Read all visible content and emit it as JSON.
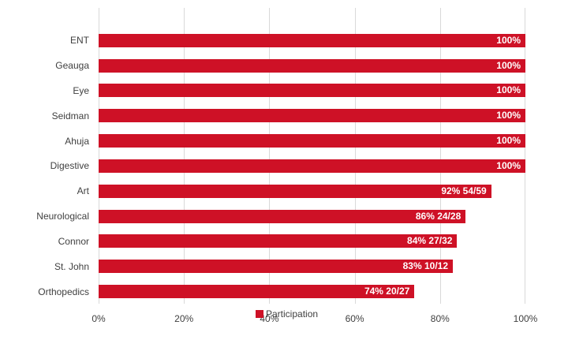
{
  "chart_data": {
    "type": "bar",
    "orientation": "horizontal",
    "title": "",
    "xlabel": "",
    "ylabel": "",
    "xlim": [
      0,
      100
    ],
    "grid": "vertical-on",
    "categories": [
      "ENT",
      "Geauga",
      "Eye",
      "Seidman",
      "Ahuja",
      "Digestive",
      "Art",
      "Neurological",
      "Connor",
      "St. John",
      "Orthopedics"
    ],
    "series": [
      {
        "name": "Participation",
        "values": [
          100,
          100,
          100,
          100,
          100,
          100,
          92,
          86,
          84,
          83,
          74
        ],
        "bar_labels": [
          "100%",
          "100%",
          "100%",
          "100%",
          "100%",
          "100%",
          "92% 54/59",
          "86% 24/28",
          "84% 27/32",
          "83% 10/12",
          "74% 20/27"
        ]
      }
    ],
    "x_ticks": [
      {
        "value": 0,
        "label": "0%"
      },
      {
        "value": 20,
        "label": "20%"
      },
      {
        "value": 40,
        "label": "40%"
      },
      {
        "value": 60,
        "label": "60%"
      },
      {
        "value": 80,
        "label": "80%"
      },
      {
        "value": 100,
        "label": "100%"
      }
    ],
    "legend": {
      "position": "bottom",
      "entries": [
        {
          "label": "Participation",
          "color": "#CE1126"
        }
      ]
    },
    "colors": {
      "bar": "#CE1126",
      "grid": "#D9D9D9",
      "axis_text": "#404040",
      "category_text": "#404040",
      "bar_label_text": "#FFFFFF",
      "background": "#FFFFFF"
    }
  }
}
